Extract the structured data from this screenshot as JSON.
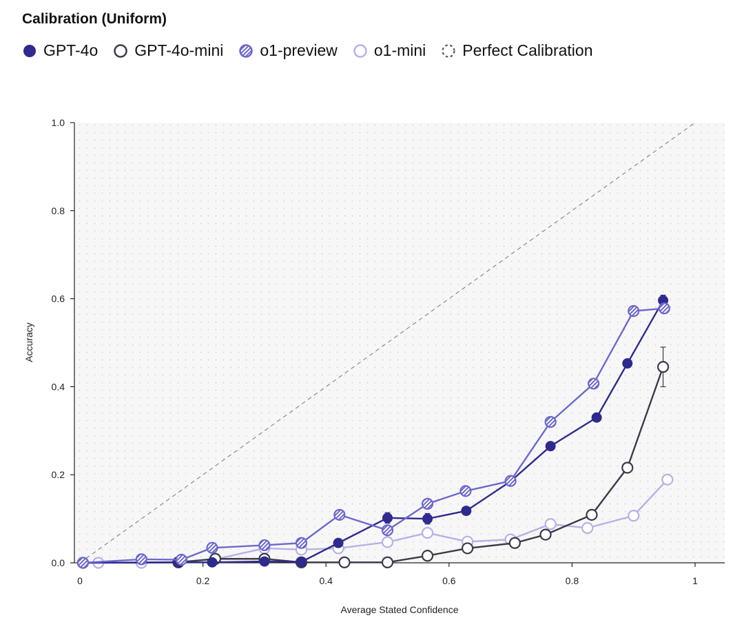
{
  "chart_data": {
    "type": "line",
    "title": "Calibration (Uniform)",
    "xlabel": "Average Stated Confidence",
    "ylabel": "Accuracy",
    "xlim": [
      0,
      1.05
    ],
    "ylim": [
      0,
      1
    ],
    "x_ticks": [
      0,
      0.2,
      0.4,
      0.6,
      0.8,
      1
    ],
    "x_tick_labels": [
      "0",
      "0.2",
      "0.4",
      "0.6",
      "0.8",
      "1"
    ],
    "y_ticks": [
      0,
      0.2,
      0.4,
      0.6,
      0.8,
      1
    ],
    "y_tick_labels": [
      "0.0",
      "0.2",
      "0.4",
      "0.6",
      "0.8",
      "1.0"
    ],
    "legend_position": "top-left",
    "series": [
      {
        "name": "o1-mini",
        "style": "open",
        "color": "#b5b1e6",
        "points": [
          {
            "x": 0.03,
            "y": 0.0
          },
          {
            "x": 0.1,
            "y": 0.0
          },
          {
            "x": 0.16,
            "y": 0.002
          },
          {
            "x": 0.22,
            "y": 0.008
          },
          {
            "x": 0.3,
            "y": 0.033
          },
          {
            "x": 0.36,
            "y": 0.03
          },
          {
            "x": 0.42,
            "y": 0.033
          },
          {
            "x": 0.5,
            "y": 0.047
          },
          {
            "x": 0.565,
            "y": 0.068
          },
          {
            "x": 0.63,
            "y": 0.048
          },
          {
            "x": 0.7,
            "y": 0.053
          },
          {
            "x": 0.765,
            "y": 0.088
          },
          {
            "x": 0.825,
            "y": 0.079
          },
          {
            "x": 0.9,
            "y": 0.107
          },
          {
            "x": 0.955,
            "y": 0.189
          }
        ]
      },
      {
        "name": "GPT-4o-mini",
        "style": "open",
        "color": "#3a3a48",
        "points": [
          {
            "x": 0.005,
            "y": 0.0
          },
          {
            "x": 0.16,
            "y": 0.001
          },
          {
            "x": 0.22,
            "y": 0.009
          },
          {
            "x": 0.3,
            "y": 0.009
          },
          {
            "x": 0.36,
            "y": 0.001
          },
          {
            "x": 0.43,
            "y": 0.001
          },
          {
            "x": 0.5,
            "y": 0.001
          },
          {
            "x": 0.565,
            "y": 0.016
          },
          {
            "x": 0.63,
            "y": 0.033
          },
          {
            "x": 0.707,
            "y": 0.045
          },
          {
            "x": 0.757,
            "y": 0.064
          },
          {
            "x": 0.832,
            "y": 0.109
          },
          {
            "x": 0.89,
            "y": 0.216
          },
          {
            "x": 0.948,
            "y": 0.445,
            "err": 0.045
          }
        ]
      },
      {
        "name": "GPT-4o",
        "style": "filled",
        "color": "#2e2a8e",
        "points": [
          {
            "x": 0.005,
            "y": 0.0
          },
          {
            "x": 0.16,
            "y": 0.001
          },
          {
            "x": 0.215,
            "y": 0.001
          },
          {
            "x": 0.3,
            "y": 0.003
          },
          {
            "x": 0.36,
            "y": 0.002
          },
          {
            "x": 0.42,
            "y": 0.045,
            "err": 0.009
          },
          {
            "x": 0.5,
            "y": 0.102,
            "err": 0.012
          },
          {
            "x": 0.565,
            "y": 0.1,
            "err": 0.012
          },
          {
            "x": 0.628,
            "y": 0.118
          },
          {
            "x": 0.7,
            "y": 0.185
          },
          {
            "x": 0.765,
            "y": 0.265
          },
          {
            "x": 0.84,
            "y": 0.33
          },
          {
            "x": 0.89,
            "y": 0.453
          },
          {
            "x": 0.948,
            "y": 0.596,
            "err": 0.012
          }
        ]
      },
      {
        "name": "o1-preview",
        "style": "hatched",
        "color": "#6c68cc",
        "points": [
          {
            "x": 0.005,
            "y": 0.0
          },
          {
            "x": 0.1,
            "y": 0.008
          },
          {
            "x": 0.165,
            "y": 0.007
          },
          {
            "x": 0.215,
            "y": 0.034
          },
          {
            "x": 0.3,
            "y": 0.04
          },
          {
            "x": 0.36,
            "y": 0.045
          },
          {
            "x": 0.422,
            "y": 0.109,
            "err": 0.01
          },
          {
            "x": 0.5,
            "y": 0.074
          },
          {
            "x": 0.565,
            "y": 0.134
          },
          {
            "x": 0.627,
            "y": 0.163
          },
          {
            "x": 0.7,
            "y": 0.186
          },
          {
            "x": 0.765,
            "y": 0.32
          },
          {
            "x": 0.835,
            "y": 0.407
          },
          {
            "x": 0.9,
            "y": 0.572
          },
          {
            "x": 0.95,
            "y": 0.578
          }
        ]
      }
    ],
    "legend_order": [
      "GPT-4o",
      "GPT-4o-mini",
      "o1-preview",
      "o1-mini",
      "Perfect Calibration"
    ],
    "reference_line": {
      "name": "Perfect Calibration",
      "style": "dashed",
      "color": "#8a8a8a"
    }
  }
}
